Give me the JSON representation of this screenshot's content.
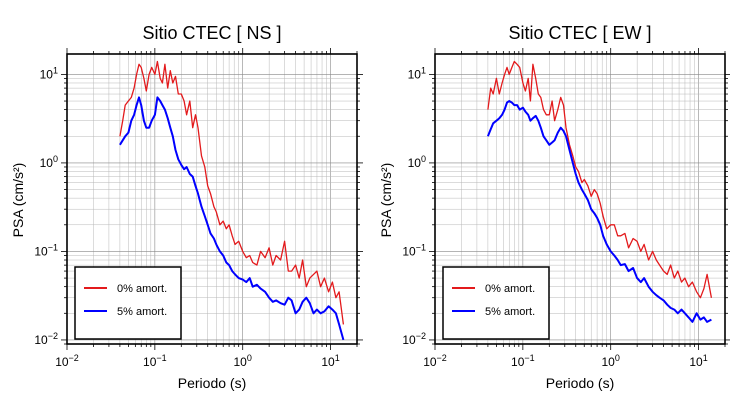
{
  "chart_data": [
    {
      "type": "line",
      "title": "Sitio CTEC [ NS ]",
      "xlabel": "Periodo (s)",
      "ylabel": "PSA (cm/s²)",
      "xscale": "log",
      "yscale": "log",
      "xlim": [
        0.01,
        20
      ],
      "ylim": [
        0.009,
        17
      ],
      "xticks": [
        {
          "value": 0.01,
          "base": "10",
          "exp": "−2"
        },
        {
          "value": 0.1,
          "base": "10",
          "exp": "−1"
        },
        {
          "value": 1,
          "base": "10",
          "exp": "0"
        },
        {
          "value": 10,
          "base": "10",
          "exp": "1"
        }
      ],
      "yticks": [
        {
          "value": 0.01,
          "base": "10",
          "exp": "−2"
        },
        {
          "value": 0.1,
          "base": "10",
          "exp": "−1"
        },
        {
          "value": 1,
          "base": "10",
          "exp": "0"
        },
        {
          "value": 10,
          "base": "10",
          "exp": "1"
        }
      ],
      "grid": true,
      "legend_position": "bottom-left",
      "series": [
        {
          "name": "0% amort.",
          "color": "#e31a1c",
          "x": [
            0.04,
            0.043,
            0.046,
            0.05,
            0.054,
            0.058,
            0.062,
            0.066,
            0.07,
            0.075,
            0.08,
            0.086,
            0.092,
            0.1,
            0.107,
            0.115,
            0.122,
            0.13,
            0.14,
            0.15,
            0.16,
            0.172,
            0.185,
            0.2,
            0.215,
            0.23,
            0.25,
            0.27,
            0.29,
            0.31,
            0.34,
            0.37,
            0.4,
            0.43,
            0.47,
            0.5,
            0.55,
            0.6,
            0.65,
            0.7,
            0.76,
            0.82,
            0.9,
            1.0,
            1.1,
            1.2,
            1.3,
            1.45,
            1.6,
            1.8,
            2.0,
            2.2,
            2.4,
            2.7,
            3.0,
            3.3,
            3.6,
            4.0,
            4.4,
            4.8,
            5.3,
            5.8,
            6.4,
            7.0,
            7.7,
            8.5,
            9.5,
            10.5,
            11.5,
            12.5,
            14.0
          ],
          "y": [
            2.0,
            3.0,
            4.5,
            5.0,
            5.5,
            7.0,
            10.0,
            13.0,
            12.0,
            9.0,
            6.5,
            10.0,
            12.0,
            10.0,
            14.0,
            9.0,
            8.0,
            13.0,
            7.0,
            11.0,
            8.0,
            9.5,
            6.0,
            6.0,
            5.0,
            3.5,
            5.0,
            2.5,
            3.5,
            2.5,
            1.2,
            0.9,
            0.55,
            0.45,
            0.32,
            0.28,
            0.2,
            0.22,
            0.18,
            0.2,
            0.15,
            0.12,
            0.13,
            0.1,
            0.085,
            0.09,
            0.075,
            0.07,
            0.1,
            0.085,
            0.11,
            0.07,
            0.09,
            0.08,
            0.13,
            0.06,
            0.06,
            0.07,
            0.05,
            0.08,
            0.04,
            0.05,
            0.055,
            0.06,
            0.04,
            0.05,
            0.035,
            0.045,
            0.03,
            0.035,
            0.015
          ]
        },
        {
          "name": "5% amort.",
          "color": "#0000ff",
          "x": [
            0.04,
            0.043,
            0.046,
            0.05,
            0.054,
            0.058,
            0.062,
            0.066,
            0.07,
            0.075,
            0.08,
            0.086,
            0.092,
            0.1,
            0.107,
            0.115,
            0.122,
            0.13,
            0.14,
            0.15,
            0.16,
            0.172,
            0.185,
            0.2,
            0.215,
            0.23,
            0.25,
            0.27,
            0.29,
            0.31,
            0.34,
            0.37,
            0.4,
            0.43,
            0.47,
            0.5,
            0.55,
            0.6,
            0.65,
            0.7,
            0.76,
            0.82,
            0.9,
            1.0,
            1.1,
            1.2,
            1.3,
            1.45,
            1.6,
            1.8,
            2.0,
            2.2,
            2.4,
            2.7,
            3.0,
            3.3,
            3.6,
            4.0,
            4.4,
            4.8,
            5.3,
            5.8,
            6.4,
            7.0,
            7.7,
            8.5,
            9.5,
            10.5,
            11.5,
            12.5,
            14.0
          ],
          "y": [
            1.6,
            1.8,
            2.0,
            2.2,
            3.0,
            3.5,
            4.5,
            5.5,
            4.5,
            3.0,
            2.5,
            2.5,
            3.0,
            3.5,
            5.5,
            5.0,
            4.5,
            4.0,
            3.2,
            2.5,
            2.0,
            1.4,
            1.1,
            0.95,
            0.85,
            0.9,
            0.75,
            0.7,
            0.55,
            0.45,
            0.32,
            0.25,
            0.2,
            0.16,
            0.14,
            0.12,
            0.1,
            0.09,
            0.075,
            0.07,
            0.06,
            0.055,
            0.05,
            0.048,
            0.045,
            0.05,
            0.04,
            0.042,
            0.038,
            0.035,
            0.03,
            0.027,
            0.028,
            0.026,
            0.025,
            0.03,
            0.028,
            0.02,
            0.022,
            0.027,
            0.03,
            0.026,
            0.02,
            0.022,
            0.02,
            0.021,
            0.024,
            0.022,
            0.02,
            0.015,
            0.01
          ]
        }
      ]
    },
    {
      "type": "line",
      "title": "Sitio CTEC [ EW ]",
      "xlabel": "Periodo (s)",
      "ylabel": "PSA (cm/s²)",
      "xscale": "log",
      "yscale": "log",
      "xlim": [
        0.01,
        20
      ],
      "ylim": [
        0.009,
        17
      ],
      "xticks": [
        {
          "value": 0.01,
          "base": "10",
          "exp": "−2"
        },
        {
          "value": 0.1,
          "base": "10",
          "exp": "−1"
        },
        {
          "value": 1,
          "base": "10",
          "exp": "0"
        },
        {
          "value": 10,
          "base": "10",
          "exp": "1"
        }
      ],
      "yticks": [
        {
          "value": 0.01,
          "base": "10",
          "exp": "−2"
        },
        {
          "value": 0.1,
          "base": "10",
          "exp": "−1"
        },
        {
          "value": 1,
          "base": "10",
          "exp": "0"
        },
        {
          "value": 10,
          "base": "10",
          "exp": "1"
        }
      ],
      "grid": true,
      "legend_position": "bottom-left",
      "series": [
        {
          "name": "0% amort.",
          "color": "#e31a1c",
          "x": [
            0.04,
            0.043,
            0.046,
            0.05,
            0.054,
            0.058,
            0.062,
            0.066,
            0.07,
            0.075,
            0.08,
            0.086,
            0.092,
            0.1,
            0.107,
            0.115,
            0.122,
            0.13,
            0.14,
            0.15,
            0.16,
            0.172,
            0.185,
            0.2,
            0.215,
            0.23,
            0.25,
            0.27,
            0.29,
            0.31,
            0.34,
            0.37,
            0.4,
            0.43,
            0.47,
            0.5,
            0.55,
            0.6,
            0.65,
            0.7,
            0.76,
            0.82,
            0.9,
            1.0,
            1.1,
            1.2,
            1.3,
            1.45,
            1.6,
            1.8,
            2.0,
            2.2,
            2.4,
            2.7,
            3.0,
            3.3,
            3.6,
            4.0,
            4.4,
            4.8,
            5.3,
            5.8,
            6.4,
            7.0,
            7.7,
            8.5,
            9.5,
            10.5,
            11.5,
            12.5,
            14.0
          ],
          "y": [
            4.0,
            7.0,
            6.0,
            9.0,
            6.0,
            8.0,
            10.0,
            12.0,
            10.0,
            12.0,
            14.0,
            13.0,
            12.0,
            8.0,
            6.5,
            9.0,
            5.0,
            13.0,
            9.0,
            6.0,
            5.5,
            4.0,
            3.5,
            3.5,
            5.0,
            3.0,
            4.0,
            5.5,
            4.5,
            2.5,
            1.6,
            1.2,
            0.9,
            0.8,
            0.6,
            0.65,
            0.55,
            0.42,
            0.5,
            0.45,
            0.35,
            0.25,
            0.18,
            0.2,
            0.2,
            0.15,
            0.15,
            0.16,
            0.11,
            0.14,
            0.13,
            0.1,
            0.12,
            0.08,
            0.1,
            0.08,
            0.07,
            0.06,
            0.055,
            0.07,
            0.05,
            0.06,
            0.045,
            0.05,
            0.04,
            0.045,
            0.035,
            0.03,
            0.038,
            0.055,
            0.03
          ]
        },
        {
          "name": "5% amort.",
          "color": "#0000ff",
          "x": [
            0.04,
            0.043,
            0.046,
            0.05,
            0.054,
            0.058,
            0.062,
            0.066,
            0.07,
            0.075,
            0.08,
            0.086,
            0.092,
            0.1,
            0.107,
            0.115,
            0.122,
            0.13,
            0.14,
            0.15,
            0.16,
            0.172,
            0.185,
            0.2,
            0.215,
            0.23,
            0.25,
            0.27,
            0.29,
            0.31,
            0.34,
            0.37,
            0.4,
            0.43,
            0.47,
            0.5,
            0.55,
            0.6,
            0.65,
            0.7,
            0.76,
            0.82,
            0.9,
            1.0,
            1.1,
            1.2,
            1.3,
            1.45,
            1.6,
            1.8,
            2.0,
            2.2,
            2.4,
            2.7,
            3.0,
            3.3,
            3.6,
            4.0,
            4.4,
            4.8,
            5.3,
            5.8,
            6.4,
            7.0,
            7.7,
            8.5,
            9.5,
            10.5,
            11.5,
            12.5,
            14.0
          ],
          "y": [
            2.0,
            2.4,
            2.8,
            3.0,
            3.2,
            3.5,
            4.0,
            4.8,
            5.0,
            4.8,
            4.5,
            4.5,
            4.0,
            4.2,
            3.8,
            3.5,
            3.0,
            3.2,
            3.4,
            3.0,
            2.5,
            2.0,
            1.8,
            1.6,
            1.7,
            1.8,
            2.2,
            2.5,
            2.3,
            2.0,
            1.4,
            1.0,
            0.75,
            0.6,
            0.5,
            0.45,
            0.38,
            0.3,
            0.27,
            0.24,
            0.2,
            0.15,
            0.12,
            0.1,
            0.09,
            0.08,
            0.07,
            0.072,
            0.06,
            0.065,
            0.05,
            0.045,
            0.05,
            0.04,
            0.035,
            0.032,
            0.03,
            0.028,
            0.025,
            0.023,
            0.022,
            0.02,
            0.022,
            0.02,
            0.018,
            0.016,
            0.02,
            0.017,
            0.018,
            0.016,
            0.017
          ]
        }
      ]
    }
  ]
}
